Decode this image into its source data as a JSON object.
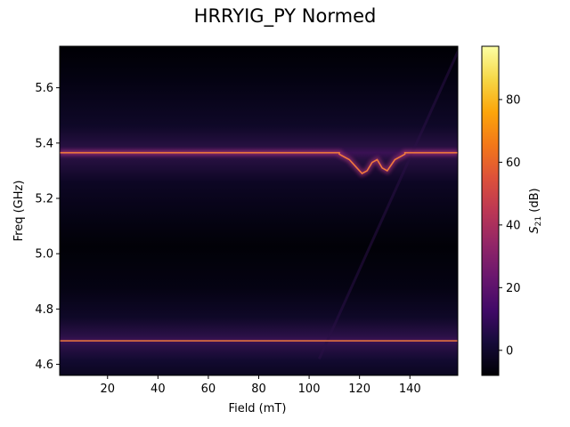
{
  "chart_data": {
    "type": "heatmap",
    "title": "HRRYIG_PY Normed",
    "xlabel": "Field (mT)",
    "ylabel": "Freq (GHz)",
    "xlim": [
      1,
      159
    ],
    "ylim": [
      4.56,
      5.75
    ],
    "x_ticks": [
      "20",
      "40",
      "60",
      "80",
      "100",
      "120",
      "140"
    ],
    "x_tick_values": [
      20,
      40,
      60,
      80,
      100,
      120,
      140
    ],
    "y_ticks": [
      "4.6",
      "4.8",
      "5.0",
      "5.2",
      "5.4",
      "5.6"
    ],
    "y_tick_values": [
      4.6,
      4.8,
      5.0,
      5.2,
      5.4,
      5.6
    ],
    "colorbar": {
      "label": "S21 (dB)",
      "label_main": "S",
      "label_sub": "21",
      "label_unit": " (dB)",
      "colormap": "inferno",
      "range": [
        -8,
        97
      ],
      "ticks": [
        "0",
        "20",
        "40",
        "60",
        "80"
      ],
      "tick_values": [
        0,
        20,
        40,
        60,
        80
      ]
    },
    "features": {
      "upper_mode_freq_ghz": 5.365,
      "lower_mode_freq_ghz": 4.685,
      "anticrossing_field_range_mt": [
        112,
        138
      ],
      "anticrossing_trace": [
        {
          "field": 112,
          "freq": 5.36
        },
        {
          "field": 116,
          "freq": 5.34
        },
        {
          "field": 119,
          "freq": 5.31
        },
        {
          "field": 121,
          "freq": 5.29
        },
        {
          "field": 123,
          "freq": 5.3
        },
        {
          "field": 125,
          "freq": 5.33
        },
        {
          "field": 127,
          "freq": 5.34
        },
        {
          "field": 129,
          "freq": 5.31
        },
        {
          "field": 131,
          "freq": 5.3
        },
        {
          "field": 134,
          "freq": 5.34
        },
        {
          "field": 138,
          "freq": 5.36
        }
      ],
      "diagonal_mode": [
        {
          "field": 104,
          "freq": 4.62
        },
        {
          "field": 160,
          "freq": 5.75
        }
      ]
    }
  }
}
